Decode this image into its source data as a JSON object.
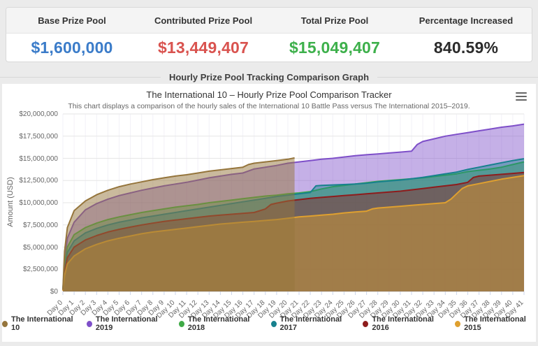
{
  "stats": {
    "items": [
      {
        "label": "Base Prize Pool",
        "value": "$1,600,000",
        "color": "#3b7cc9"
      },
      {
        "label": "Contributed Prize Pool",
        "value": "$13,449,407",
        "color": "#d9534f"
      },
      {
        "label": "Total Prize Pool",
        "value": "$15,049,407",
        "color": "#3db04b"
      },
      {
        "label": "Percentage Increased",
        "value": "840.59%",
        "color": "#2b2b2b"
      }
    ]
  },
  "section": {
    "title": "Hourly Prize Pool Tracking Comparison Graph"
  },
  "chart_data": {
    "type": "area",
    "title": "The International 10 – Hourly Prize Pool Comparison Tracker",
    "subtitle": "This chart displays a comparison of the hourly sales of the International 10 Battle Pass versus The International 2015–2019.",
    "xlabel": "",
    "ylabel": "Amount (USD)",
    "y_unit": "USD millions",
    "xlim_days": [
      0,
      41
    ],
    "ylim_musd": [
      0,
      20
    ],
    "grid": true,
    "legend_position": "bottom",
    "y_labels": [
      "$20,000,000",
      "$17,500,000",
      "$15,000,000",
      "$12,500,000",
      "$10,000,000",
      "$7,500,000",
      "$5,000,000",
      "$2,500,000",
      "$0"
    ],
    "x_labels": [
      "Day 0",
      "Day 1",
      "Day 2",
      "Day 3",
      "Day 4",
      "Day 5",
      "Day 6",
      "Day 7",
      "Day 8",
      "Day 9",
      "Day 10",
      "Day 11",
      "Day 12",
      "Day 13",
      "Day 14",
      "Day 15",
      "Day 16",
      "Day 17",
      "Day 18",
      "Day 19",
      "Day 20",
      "Day 21",
      "Day 22",
      "Day 23",
      "Day 24",
      "Day 25",
      "Day 26",
      "Day 27",
      "Day 28",
      "Day 29",
      "Day 30",
      "Day 31",
      "Day 32",
      "Day 33",
      "Day 34",
      "Day 35",
      "Day 36",
      "Day 37",
      "Day 38",
      "Day 39",
      "Day 40",
      "Day 41"
    ],
    "colors": {
      "grid_h": "#e6e6e6",
      "grid_v": "#f2f1f7",
      "axis_line": "#ccd6eb",
      "tick": "#ccd6eb",
      "axis_label": "#666666"
    },
    "draw_order": [
      1,
      2,
      3,
      4,
      5,
      0
    ],
    "series": [
      {
        "name": "The International 10",
        "color": "#95753c",
        "fill_opacity": 0.5,
        "points_musd": [
          [
            0,
            0.2
          ],
          [
            0.15,
            4.5
          ],
          [
            0.4,
            7.2
          ],
          [
            1,
            9.1
          ],
          [
            2,
            10.2
          ],
          [
            3,
            10.9
          ],
          [
            4,
            11.4
          ],
          [
            5,
            11.8
          ],
          [
            6,
            12.1
          ],
          [
            7,
            12.35
          ],
          [
            8,
            12.6
          ],
          [
            9,
            12.8
          ],
          [
            10,
            13.0
          ],
          [
            11,
            13.15
          ],
          [
            12,
            13.35
          ],
          [
            13,
            13.55
          ],
          [
            14,
            13.7
          ],
          [
            15,
            13.85
          ],
          [
            16,
            14.0
          ],
          [
            16.5,
            14.3
          ],
          [
            17,
            14.45
          ],
          [
            18,
            14.6
          ],
          [
            19,
            14.75
          ],
          [
            20,
            14.9
          ],
          [
            20.6,
            15.05
          ]
        ]
      },
      {
        "name": "The International 2019",
        "color": "#7e4fc9",
        "fill_opacity": 0.45,
        "points_musd": [
          [
            0,
            0.15
          ],
          [
            0.15,
            3.5
          ],
          [
            0.4,
            6.0
          ],
          [
            1,
            7.8
          ],
          [
            2,
            9.2
          ],
          [
            3,
            9.9
          ],
          [
            4,
            10.4
          ],
          [
            5,
            10.8
          ],
          [
            6,
            11.1
          ],
          [
            7,
            11.4
          ],
          [
            8,
            11.65
          ],
          [
            9,
            11.9
          ],
          [
            10,
            12.1
          ],
          [
            11,
            12.3
          ],
          [
            12,
            12.55
          ],
          [
            13,
            12.8
          ],
          [
            14,
            13.0
          ],
          [
            15,
            13.2
          ],
          [
            16,
            13.35
          ],
          [
            17,
            13.8
          ],
          [
            18,
            14.0
          ],
          [
            19,
            14.2
          ],
          [
            20,
            14.45
          ],
          [
            21,
            14.6
          ],
          [
            22,
            14.75
          ],
          [
            23,
            14.9
          ],
          [
            24,
            15.0
          ],
          [
            25,
            15.15
          ],
          [
            26,
            15.3
          ],
          [
            27,
            15.4
          ],
          [
            28,
            15.5
          ],
          [
            29,
            15.6
          ],
          [
            30,
            15.7
          ],
          [
            31,
            15.8
          ],
          [
            31.5,
            16.55
          ],
          [
            32,
            16.9
          ],
          [
            33,
            17.2
          ],
          [
            34,
            17.5
          ],
          [
            35,
            17.7
          ],
          [
            36,
            17.9
          ],
          [
            37,
            18.1
          ],
          [
            38,
            18.3
          ],
          [
            39,
            18.5
          ],
          [
            40,
            18.65
          ],
          [
            41,
            18.85
          ]
        ]
      },
      {
        "name": "The International 2018",
        "color": "#3faa46",
        "fill_opacity": 0.45,
        "points_musd": [
          [
            0,
            0.12
          ],
          [
            0.15,
            3.0
          ],
          [
            0.4,
            5.0
          ],
          [
            1,
            6.4
          ],
          [
            2,
            7.2
          ],
          [
            3,
            7.7
          ],
          [
            4,
            8.1
          ],
          [
            5,
            8.4
          ],
          [
            6,
            8.65
          ],
          [
            7,
            8.9
          ],
          [
            8,
            9.1
          ],
          [
            9,
            9.3
          ],
          [
            10,
            9.5
          ],
          [
            11,
            9.65
          ],
          [
            12,
            9.8
          ],
          [
            13,
            10.0
          ],
          [
            14,
            10.15
          ],
          [
            15,
            10.3
          ],
          [
            16,
            10.45
          ],
          [
            17,
            10.6
          ],
          [
            18,
            10.75
          ],
          [
            19,
            10.85
          ],
          [
            20,
            11.0
          ],
          [
            21,
            11.1
          ],
          [
            22,
            11.25
          ],
          [
            23,
            11.55
          ],
          [
            24,
            11.8
          ],
          [
            25,
            11.95
          ],
          [
            26,
            12.1
          ],
          [
            27,
            12.25
          ],
          [
            28,
            12.4
          ],
          [
            29,
            12.5
          ],
          [
            30,
            12.6
          ],
          [
            31,
            12.7
          ],
          [
            32,
            12.8
          ],
          [
            33,
            12.95
          ],
          [
            34,
            13.1
          ],
          [
            35,
            13.25
          ],
          [
            36,
            13.5
          ],
          [
            37,
            13.65
          ],
          [
            38,
            13.8
          ],
          [
            39,
            14.0
          ],
          [
            40,
            14.3
          ],
          [
            41,
            14.6
          ]
        ]
      },
      {
        "name": "The International 2017",
        "color": "#17818e",
        "fill_opacity": 0.45,
        "points_musd": [
          [
            0,
            0.12
          ],
          [
            0.15,
            2.6
          ],
          [
            0.4,
            4.4
          ],
          [
            1,
            5.7
          ],
          [
            2,
            6.6
          ],
          [
            3,
            7.1
          ],
          [
            4,
            7.5
          ],
          [
            5,
            7.8
          ],
          [
            6,
            8.05
          ],
          [
            7,
            8.3
          ],
          [
            8,
            8.5
          ],
          [
            9,
            8.7
          ],
          [
            10,
            8.9
          ],
          [
            11,
            9.1
          ],
          [
            12,
            9.3
          ],
          [
            13,
            9.5
          ],
          [
            14,
            9.7
          ],
          [
            15,
            9.9
          ],
          [
            16,
            10.1
          ],
          [
            17,
            10.3
          ],
          [
            18,
            10.5
          ],
          [
            19,
            10.7
          ],
          [
            20,
            10.85
          ],
          [
            21,
            11.0
          ],
          [
            22,
            11.15
          ],
          [
            22.5,
            11.9
          ],
          [
            23,
            11.95
          ],
          [
            24,
            12.0
          ],
          [
            25,
            12.05
          ],
          [
            26,
            12.1
          ],
          [
            27,
            12.2
          ],
          [
            28,
            12.35
          ],
          [
            29,
            12.45
          ],
          [
            30,
            12.55
          ],
          [
            31,
            12.7
          ],
          [
            32,
            12.85
          ],
          [
            33,
            13.05
          ],
          [
            34,
            13.25
          ],
          [
            35,
            13.45
          ],
          [
            36,
            13.75
          ],
          [
            37,
            14.0
          ],
          [
            38,
            14.25
          ],
          [
            39,
            14.5
          ],
          [
            40,
            14.75
          ],
          [
            41,
            14.95
          ]
        ]
      },
      {
        "name": "The International 2016",
        "color": "#8e1c1c",
        "fill_opacity": 0.45,
        "points_musd": [
          [
            0,
            0.1
          ],
          [
            0.15,
            2.2
          ],
          [
            0.4,
            3.8
          ],
          [
            1,
            5.0
          ],
          [
            2,
            5.8
          ],
          [
            3,
            6.3
          ],
          [
            4,
            6.7
          ],
          [
            5,
            7.0
          ],
          [
            6,
            7.25
          ],
          [
            7,
            7.5
          ],
          [
            8,
            7.7
          ],
          [
            9,
            7.9
          ],
          [
            10,
            8.05
          ],
          [
            11,
            8.2
          ],
          [
            12,
            8.35
          ],
          [
            13,
            8.5
          ],
          [
            14,
            8.6
          ],
          [
            15,
            8.7
          ],
          [
            16,
            8.8
          ],
          [
            17,
            8.9
          ],
          [
            18,
            9.3
          ],
          [
            18.5,
            9.8
          ],
          [
            19,
            9.95
          ],
          [
            20,
            10.2
          ],
          [
            21,
            10.35
          ],
          [
            22,
            10.5
          ],
          [
            23,
            10.6
          ],
          [
            24,
            10.7
          ],
          [
            25,
            10.8
          ],
          [
            26,
            10.9
          ],
          [
            27,
            11.0
          ],
          [
            28,
            11.1
          ],
          [
            29,
            11.2
          ],
          [
            30,
            11.3
          ],
          [
            31,
            11.45
          ],
          [
            32,
            11.6
          ],
          [
            33,
            11.75
          ],
          [
            34,
            11.9
          ],
          [
            35,
            12.05
          ],
          [
            36,
            12.3
          ],
          [
            36.5,
            12.85
          ],
          [
            37,
            13.0
          ],
          [
            38,
            13.1
          ],
          [
            39,
            13.2
          ],
          [
            40,
            13.3
          ],
          [
            41,
            13.4
          ]
        ]
      },
      {
        "name": "The International 2015",
        "color": "#dfa02f",
        "fill_opacity": 0.45,
        "points_musd": [
          [
            0,
            0.1
          ],
          [
            0.15,
            1.8
          ],
          [
            0.4,
            3.1
          ],
          [
            1,
            4.0
          ],
          [
            2,
            4.8
          ],
          [
            3,
            5.3
          ],
          [
            4,
            5.7
          ],
          [
            5,
            6.0
          ],
          [
            6,
            6.25
          ],
          [
            7,
            6.5
          ],
          [
            8,
            6.7
          ],
          [
            9,
            6.85
          ],
          [
            10,
            7.0
          ],
          [
            11,
            7.15
          ],
          [
            12,
            7.3
          ],
          [
            13,
            7.45
          ],
          [
            14,
            7.6
          ],
          [
            15,
            7.7
          ],
          [
            16,
            7.8
          ],
          [
            17,
            7.9
          ],
          [
            18,
            8.0
          ],
          [
            19,
            8.1
          ],
          [
            20,
            8.25
          ],
          [
            21,
            8.4
          ],
          [
            22,
            8.5
          ],
          [
            23,
            8.6
          ],
          [
            24,
            8.7
          ],
          [
            25,
            8.85
          ],
          [
            26,
            8.95
          ],
          [
            27,
            9.05
          ],
          [
            27.5,
            9.3
          ],
          [
            28,
            9.4
          ],
          [
            29,
            9.5
          ],
          [
            30,
            9.6
          ],
          [
            31,
            9.7
          ],
          [
            32,
            9.8
          ],
          [
            33,
            9.9
          ],
          [
            34,
            10.0
          ],
          [
            34.5,
            10.4
          ],
          [
            35,
            11.0
          ],
          [
            35.5,
            11.6
          ],
          [
            36,
            11.9
          ],
          [
            37,
            12.15
          ],
          [
            38,
            12.4
          ],
          [
            39,
            12.65
          ],
          [
            40,
            12.85
          ],
          [
            41,
            13.05
          ]
        ]
      }
    ]
  }
}
